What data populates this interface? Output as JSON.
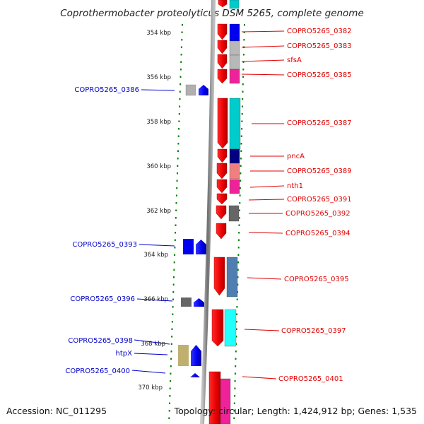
{
  "title": "Coprothermobacter proteolyticus DSM 5265, complete genome",
  "footer": {
    "accession": "Accession: NC_011295",
    "topology": "Topology: circular; Length: 1,424,912 bp; Genes: 1,535"
  },
  "ticks": [
    "354 kbp",
    "356 kbp",
    "358 kbp",
    "360 kbp",
    "362 kbp",
    "364 kbp",
    "366 kbp",
    "368 kbp",
    "370 kbp"
  ],
  "colors": {
    "forward_label": "#e00000",
    "reverse_label": "#0000cc",
    "forward_gene": "#ff0000",
    "reverse_gene": "#0000ff",
    "backbone": "#888888",
    "tick_dots": "#008000"
  },
  "forward_labels": [
    {
      "text": "COPRO5265_0382",
      "color": "#0000ee"
    },
    {
      "text": "COPRO5265_0383",
      "color": "#b8b8b8"
    },
    {
      "text": "sfsA",
      "color": "#b8b8b8"
    },
    {
      "text": "COPRO5265_0385",
      "color": "#ee2299"
    },
    {
      "text": "COPRO5265_0387",
      "color": "#00cccc"
    },
    {
      "text": "pncA",
      "color": "#000080"
    },
    {
      "text": "COPRO5265_0389",
      "color": "#f08080"
    },
    {
      "text": "nth1",
      "color": "#ee2299"
    },
    {
      "text": "COPRO5265_0391",
      "color": "#ffffff"
    },
    {
      "text": "COPRO5265_0392",
      "color": "#666666"
    },
    {
      "text": "COPRO5265_0394",
      "color": "#ffffff"
    },
    {
      "text": "COPRO5265_0395",
      "color": "#4f7fb0"
    },
    {
      "text": "COPRO5265_0397",
      "color": "#22ffff"
    },
    {
      "text": "COPRO5265_0401",
      "color": "#ee2299"
    }
  ],
  "reverse_labels": [
    {
      "text": "COPRO5265_0386",
      "color": "#b0b0b0"
    },
    {
      "text": "COPRO5265_0393",
      "color": "#0000ee"
    },
    {
      "text": "COPRO5265_0396",
      "color": "#666666"
    },
    {
      "text": "COPRO5265_0398",
      "color": "#c0b070"
    },
    {
      "text": "htpX",
      "color": "#0000ee"
    },
    {
      "text": "COPRO5265_0400",
      "color": "#0000ee"
    }
  ]
}
